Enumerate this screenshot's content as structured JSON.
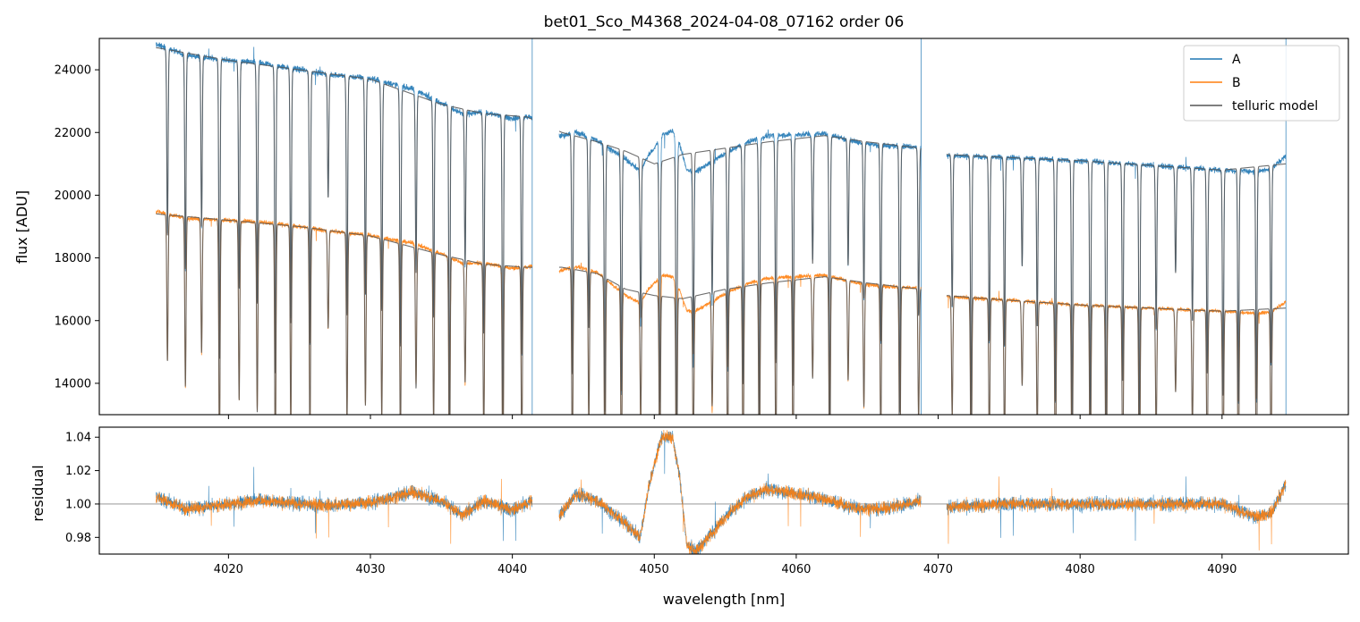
{
  "chart_data": {
    "type": "line",
    "title": "bet01_Sco_M4368_2024-04-08_07162  order 06",
    "xlabel": "wavelength [nm]",
    "colors": {
      "A": "#1f77b4",
      "B": "#ff7f0e",
      "model": "#555555",
      "refline": "#888888"
    },
    "legend": {
      "position": "top-right",
      "entries": [
        {
          "key": "A",
          "label": "A"
        },
        {
          "key": "B",
          "label": "B"
        },
        {
          "key": "model",
          "label": "telluric model"
        }
      ]
    },
    "xlim": [
      4010.9,
      4098.9
    ],
    "x_ticks": [
      4020,
      4030,
      4040,
      4050,
      4060,
      4070,
      4080,
      4090
    ],
    "x_tick_labels": [
      "4020",
      "4030",
      "4040",
      "4050",
      "4060",
      "4070",
      "4080",
      "4090"
    ],
    "segments": [
      [
        4014.9,
        4041.4
      ],
      [
        4043.3,
        4068.8
      ],
      [
        4070.6,
        4094.5
      ]
    ],
    "top_panel": {
      "ylabel": "flux [ADU]",
      "ylim": [
        13000,
        25000
      ],
      "y_ticks": [
        14000,
        16000,
        18000,
        20000,
        22000,
        24000
      ],
      "y_tick_labels": [
        "14000",
        "16000",
        "18000",
        "20000",
        "22000",
        "24000"
      ],
      "series": [
        {
          "name": "A",
          "continuum": [
            [
              4015,
              24700
            ],
            [
              4020,
              24300
            ],
            [
              4025,
              24000
            ],
            [
              4030,
              23700
            ],
            [
              4035,
              22900
            ],
            [
              4038,
              22600
            ],
            [
              4041,
              22500
            ],
            [
              4043.5,
              22000
            ],
            [
              4046,
              21700
            ],
            [
              4048,
              21400
            ],
            [
              4050,
              21000
            ],
            [
              4052,
              21300
            ],
            [
              4055,
              21500
            ],
            [
              4058,
              21700
            ],
            [
              4062,
              21900
            ],
            [
              4065,
              21700
            ],
            [
              4068.8,
              21500
            ],
            [
              4070.6,
              21300
            ],
            [
              4075,
              21200
            ],
            [
              4080,
              21100
            ],
            [
              4085,
              20950
            ],
            [
              4090,
              20800
            ],
            [
              4094.5,
              21000
            ]
          ]
        },
        {
          "name": "B",
          "continuum": [
            [
              4015,
              19400
            ],
            [
              4020,
              19200
            ],
            [
              4025,
              19000
            ],
            [
              4030,
              18700
            ],
            [
              4035,
              18100
            ],
            [
              4038,
              17800
            ],
            [
              4041,
              17700
            ],
            [
              4043.5,
              17700
            ],
            [
              4046,
              17500
            ],
            [
              4048,
              17000
            ],
            [
              4050,
              16800
            ],
            [
              4052,
              16700
            ],
            [
              4055,
              17000
            ],
            [
              4058,
              17200
            ],
            [
              4062,
              17400
            ],
            [
              4065,
              17200
            ],
            [
              4068.8,
              17000
            ],
            [
              4070.6,
              16800
            ],
            [
              4075,
              16650
            ],
            [
              4080,
              16500
            ],
            [
              4085,
              16400
            ],
            [
              4090,
              16300
            ],
            [
              4094.5,
              16400
            ]
          ]
        }
      ],
      "line_depth": [
        0.16,
        0.45
      ]
    },
    "bottom_panel": {
      "ylabel": "residual",
      "ylim": [
        0.97,
        1.046
      ],
      "y_ticks": [
        0.98,
        1.0,
        1.02,
        1.04
      ],
      "y_tick_labels": [
        "0.98",
        "1.00",
        "1.02",
        "1.04"
      ],
      "reference_line": 1.0,
      "residual_trend": [
        [
          4015,
          1.004
        ],
        [
          4017,
          0.997
        ],
        [
          4022,
          1.002
        ],
        [
          4027,
          0.999
        ],
        [
          4030,
          1.001
        ],
        [
          4033,
          1.007
        ],
        [
          4035,
          1.002
        ],
        [
          4036.5,
          0.993
        ],
        [
          4038,
          1.002
        ],
        [
          4040,
          0.996
        ],
        [
          4041.4,
          1.002
        ],
        [
          4043.3,
          0.993
        ],
        [
          4044.5,
          1.006
        ],
        [
          4046,
          1.002
        ],
        [
          4048,
          0.988
        ],
        [
          4049,
          0.98
        ],
        [
          4049.6,
          1.01
        ],
        [
          4050.5,
          1.04
        ],
        [
          4051.3,
          1.04
        ],
        [
          4051.8,
          1.015
        ],
        [
          4052.3,
          0.975
        ],
        [
          4053,
          0.972
        ],
        [
          4055,
          0.992
        ],
        [
          4056.5,
          1.004
        ],
        [
          4058,
          1.009
        ],
        [
          4060,
          1.006
        ],
        [
          4062,
          1.003
        ],
        [
          4064,
          0.998
        ],
        [
          4066,
          0.997
        ],
        [
          4068.8,
          1.002
        ],
        [
          4070.6,
          0.998
        ],
        [
          4075,
          1.0
        ],
        [
          4080,
          1.0
        ],
        [
          4085,
          1.0
        ],
        [
          4090,
          1.0
        ],
        [
          4092.5,
          0.992
        ],
        [
          4093.5,
          0.995
        ],
        [
          4094.5,
          1.012
        ]
      ]
    }
  }
}
